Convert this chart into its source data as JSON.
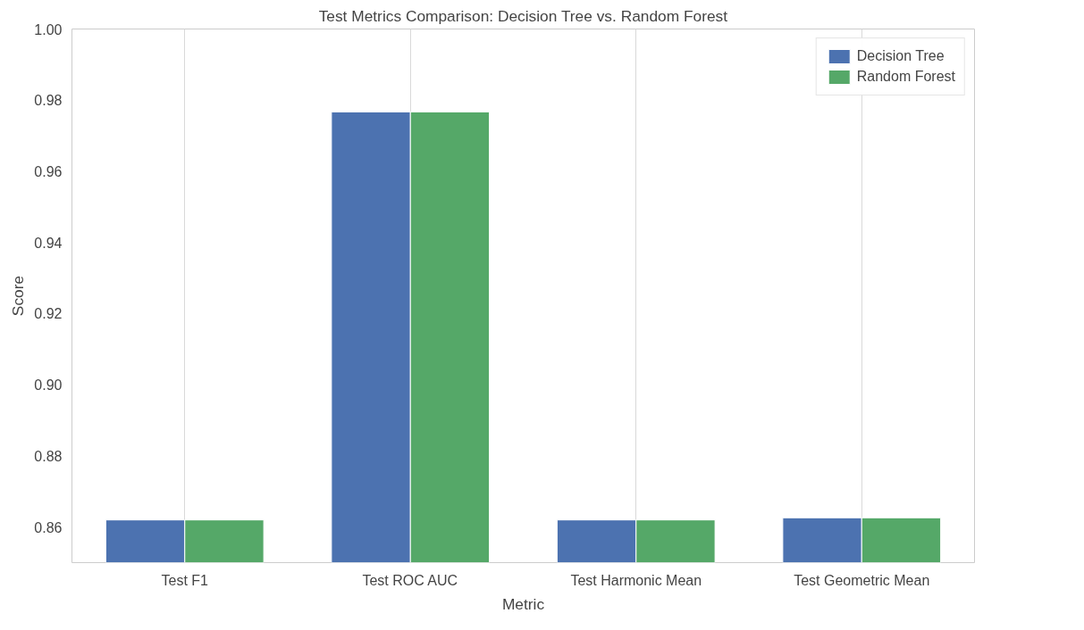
{
  "chart_data": {
    "type": "bar",
    "title": "Test Metrics Comparison: Decision Tree vs. Random Forest",
    "xlabel": "Metric",
    "ylabel": "Score",
    "categories": [
      "Test F1",
      "Test ROC AUC",
      "Test Harmonic Mean",
      "Test Geometric Mean"
    ],
    "series": [
      {
        "name": "Decision Tree",
        "color": "#4c72b0",
        "values": [
          0.862,
          0.9767,
          0.862,
          0.8626
        ]
      },
      {
        "name": "Random Forest",
        "color": "#55a868",
        "values": [
          0.862,
          0.9767,
          0.862,
          0.8626
        ]
      }
    ],
    "ylim": [
      0.85,
      1.0
    ],
    "yticks": [
      {
        "value": 0.86,
        "label": "0.86"
      },
      {
        "value": 0.88,
        "label": "0.88"
      },
      {
        "value": 0.9,
        "label": "0.90"
      },
      {
        "value": 0.92,
        "label": "0.92"
      },
      {
        "value": 0.94,
        "label": "0.94"
      },
      {
        "value": 0.96,
        "label": "0.96"
      },
      {
        "value": 0.98,
        "label": "0.98"
      },
      {
        "value": 1.0,
        "label": "1.00"
      }
    ],
    "grid": "x",
    "legend": "top right"
  }
}
